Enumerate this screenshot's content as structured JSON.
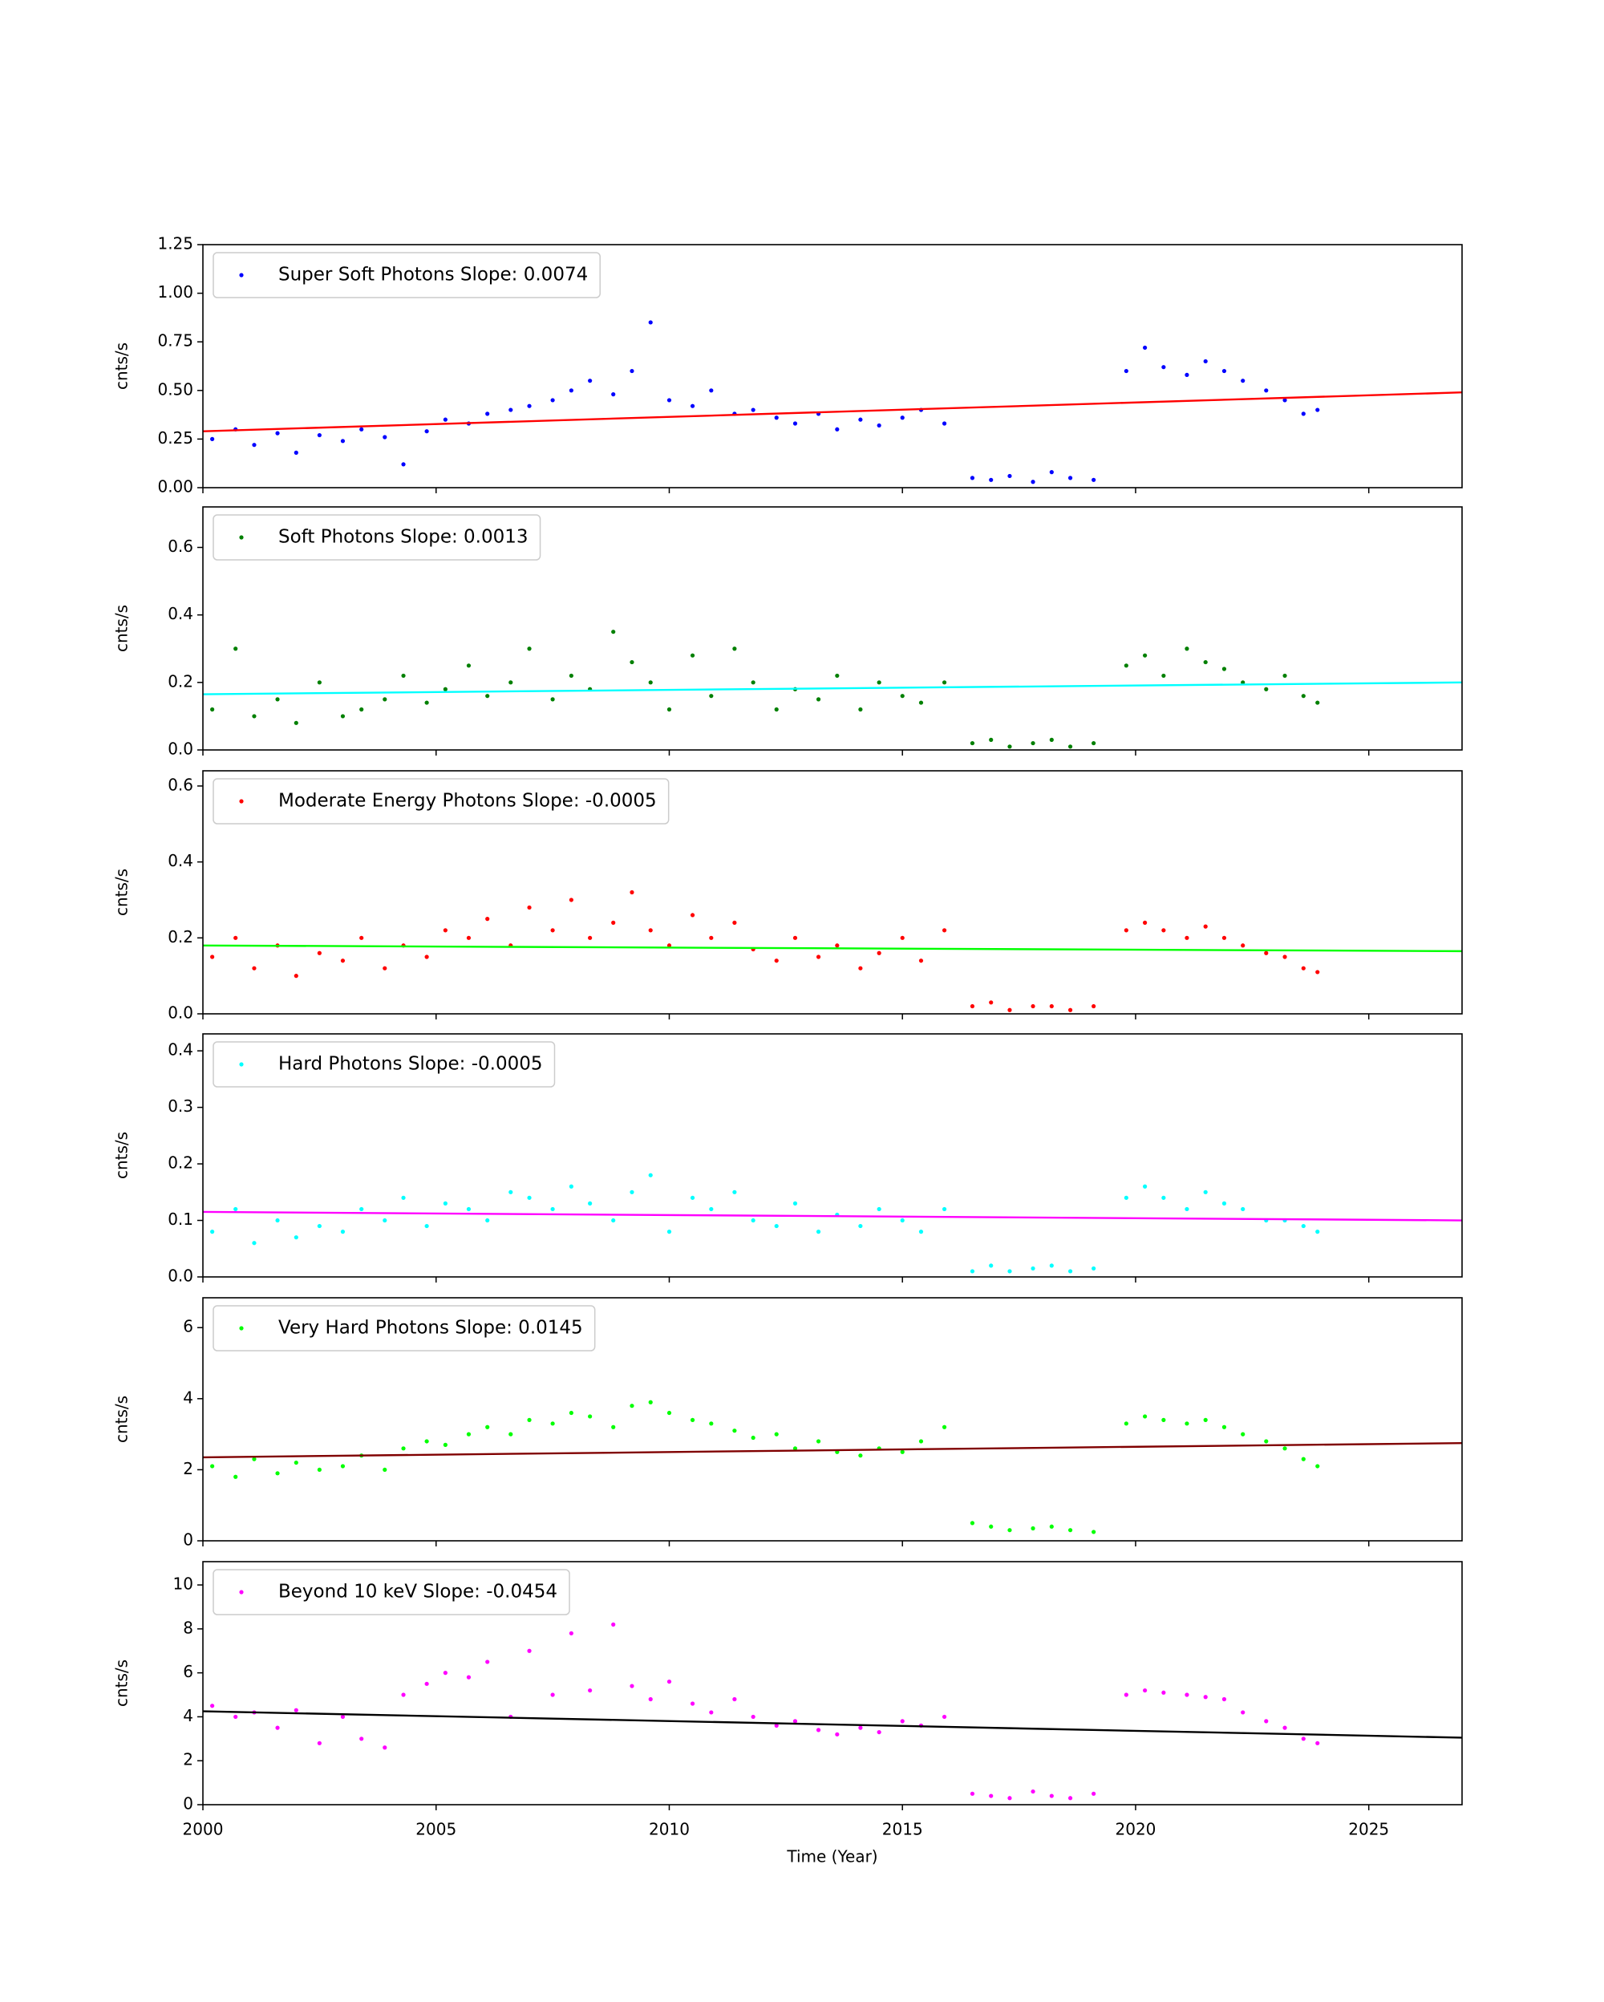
{
  "chart_data": [
    {
      "type": "scatter",
      "ylabel": "cnts/s",
      "xlim": [
        2000,
        2027
      ],
      "xticks": [
        2000,
        2005,
        2010,
        2015,
        2020,
        2025
      ],
      "ylim": [
        0,
        1.25
      ],
      "yticks": [
        {
          "value": 0,
          "label": "0.00"
        },
        {
          "value": 0.25,
          "label": "0.25"
        },
        {
          "value": 0.5,
          "label": "0.50"
        },
        {
          "value": 0.75,
          "label": "0.75"
        },
        {
          "value": 1,
          "label": "1.00"
        },
        {
          "value": 1.25,
          "label": "1.25"
        }
      ],
      "x": [
        2000.2,
        2000.7,
        2001.1,
        2001.6,
        2002.0,
        2002.5,
        2003.0,
        2003.4,
        2003.9,
        2004.3,
        2004.8,
        2005.2,
        2005.7,
        2006.1,
        2006.6,
        2007.0,
        2007.5,
        2007.9,
        2008.3,
        2008.8,
        2009.2,
        2009.6,
        2010.0,
        2010.5,
        2010.9,
        2011.4,
        2011.8,
        2012.3,
        2012.7,
        2013.2,
        2013.6,
        2014.1,
        2014.5,
        2015.0,
        2015.4,
        2015.9,
        2016.5,
        2016.9,
        2017.3,
        2017.8,
        2018.2,
        2018.6,
        2019.1,
        2019.8,
        2020.2,
        2020.6,
        2021.1,
        2021.5,
        2021.9,
        2022.3,
        2022.8,
        2023.2,
        2023.6,
        2023.9
      ],
      "series": [
        {
          "name": "Super Soft Photons Slope: 0.0074",
          "color": "#0000ff",
          "values": [
            0.25,
            0.3,
            0.22,
            0.28,
            0.18,
            0.27,
            0.24,
            0.3,
            0.26,
            0.12,
            0.29,
            0.35,
            0.33,
            0.38,
            0.4,
            0.42,
            0.45,
            0.5,
            0.55,
            0.48,
            0.6,
            0.85,
            0.45,
            0.42,
            0.5,
            0.38,
            0.4,
            0.36,
            0.33,
            0.38,
            0.3,
            0.35,
            0.32,
            0.36,
            0.4,
            0.33,
            0.05,
            0.04,
            0.06,
            0.03,
            0.08,
            0.05,
            0.04,
            0.6,
            0.72,
            0.62,
            0.58,
            0.65,
            0.6,
            0.55,
            0.5,
            0.45,
            0.38,
            0.4
          ]
        }
      ],
      "fit": {
        "x": [
          2000,
          2027
        ],
        "values": [
          0.29,
          0.49
        ],
        "color": "#ff0000"
      }
    },
    {
      "type": "scatter",
      "ylabel": "cnts/s",
      "xlim": [
        2000,
        2027
      ],
      "xticks": [
        2000,
        2005,
        2010,
        2015,
        2020,
        2025
      ],
      "ylim": [
        0,
        0.72
      ],
      "yticks": [
        {
          "value": 0,
          "label": "0.0"
        },
        0.2,
        0.4,
        0.6
      ],
      "x": [
        2000.2,
        2000.7,
        2001.1,
        2001.6,
        2002.0,
        2002.5,
        2003.0,
        2003.4,
        2003.9,
        2004.3,
        2004.8,
        2005.2,
        2005.7,
        2006.1,
        2006.6,
        2007.0,
        2007.5,
        2007.9,
        2008.3,
        2008.8,
        2009.2,
        2009.6,
        2010.0,
        2010.5,
        2010.9,
        2011.4,
        2011.8,
        2012.3,
        2012.7,
        2013.2,
        2013.6,
        2014.1,
        2014.5,
        2015.0,
        2015.4,
        2015.9,
        2016.5,
        2016.9,
        2017.3,
        2017.8,
        2018.2,
        2018.6,
        2019.1,
        2019.8,
        2020.2,
        2020.6,
        2021.1,
        2021.5,
        2021.9,
        2022.3,
        2022.8,
        2023.2,
        2023.6,
        2023.9
      ],
      "series": [
        {
          "name": "Soft Photons Slope: 0.0013",
          "color": "#008000",
          "values": [
            0.12,
            0.3,
            0.1,
            0.15,
            0.08,
            0.2,
            0.1,
            0.12,
            0.15,
            0.22,
            0.14,
            0.18,
            0.25,
            0.16,
            0.2,
            0.3,
            0.15,
            0.22,
            0.18,
            0.35,
            0.26,
            0.2,
            0.12,
            0.28,
            0.16,
            0.3,
            0.2,
            0.12,
            0.18,
            0.15,
            0.22,
            0.12,
            0.2,
            0.16,
            0.14,
            0.2,
            0.02,
            0.03,
            0.01,
            0.02,
            0.03,
            0.01,
            0.02,
            0.25,
            0.28,
            0.22,
            0.3,
            0.26,
            0.24,
            0.2,
            0.18,
            0.22,
            0.16,
            0.14
          ]
        }
      ],
      "fit": {
        "x": [
          2000,
          2027
        ],
        "values": [
          0.165,
          0.2
        ],
        "color": "#00ffff"
      }
    },
    {
      "type": "scatter",
      "ylabel": "cnts/s",
      "xlim": [
        2000,
        2027
      ],
      "xticks": [
        2000,
        2005,
        2010,
        2015,
        2020,
        2025
      ],
      "ylim": [
        0,
        0.64
      ],
      "yticks": [
        {
          "value": 0,
          "label": "0.0"
        },
        0.2,
        0.4,
        0.6
      ],
      "x": [
        2000.2,
        2000.7,
        2001.1,
        2001.6,
        2002.0,
        2002.5,
        2003.0,
        2003.4,
        2003.9,
        2004.3,
        2004.8,
        2005.2,
        2005.7,
        2006.1,
        2006.6,
        2007.0,
        2007.5,
        2007.9,
        2008.3,
        2008.8,
        2009.2,
        2009.6,
        2010.0,
        2010.5,
        2010.9,
        2011.4,
        2011.8,
        2012.3,
        2012.7,
        2013.2,
        2013.6,
        2014.1,
        2014.5,
        2015.0,
        2015.4,
        2015.9,
        2016.5,
        2016.9,
        2017.3,
        2017.8,
        2018.2,
        2018.6,
        2019.1,
        2019.8,
        2020.2,
        2020.6,
        2021.1,
        2021.5,
        2021.9,
        2022.3,
        2022.8,
        2023.2,
        2023.6,
        2023.9
      ],
      "series": [
        {
          "name": "Moderate Energy Photons Slope: -0.0005",
          "color": "#ff0000",
          "values": [
            0.15,
            0.2,
            0.12,
            0.18,
            0.1,
            0.16,
            0.14,
            0.2,
            0.12,
            0.18,
            0.15,
            0.22,
            0.2,
            0.25,
            0.18,
            0.28,
            0.22,
            0.3,
            0.2,
            0.24,
            0.32,
            0.22,
            0.18,
            0.26,
            0.2,
            0.24,
            0.17,
            0.14,
            0.2,
            0.15,
            0.18,
            0.12,
            0.16,
            0.2,
            0.14,
            0.22,
            0.02,
            0.03,
            0.01,
            0.02,
            0.02,
            0.01,
            0.02,
            0.22,
            0.24,
            0.22,
            0.2,
            0.23,
            0.2,
            0.18,
            0.16,
            0.15,
            0.12,
            0.11
          ]
        }
      ],
      "fit": {
        "x": [
          2000,
          2027
        ],
        "values": [
          0.18,
          0.165
        ],
        "color": "#00ff00"
      }
    },
    {
      "type": "scatter",
      "ylabel": "cnts/s",
      "xlim": [
        2000,
        2027
      ],
      "xticks": [
        2000,
        2005,
        2010,
        2015,
        2020,
        2025
      ],
      "ylim": [
        0,
        0.43
      ],
      "yticks": [
        {
          "value": 0,
          "label": "0.0"
        },
        0.1,
        0.2,
        0.3,
        0.4
      ],
      "x": [
        2000.2,
        2000.7,
        2001.1,
        2001.6,
        2002.0,
        2002.5,
        2003.0,
        2003.4,
        2003.9,
        2004.3,
        2004.8,
        2005.2,
        2005.7,
        2006.1,
        2006.6,
        2007.0,
        2007.5,
        2007.9,
        2008.3,
        2008.8,
        2009.2,
        2009.6,
        2010.0,
        2010.5,
        2010.9,
        2011.4,
        2011.8,
        2012.3,
        2012.7,
        2013.2,
        2013.6,
        2014.1,
        2014.5,
        2015.0,
        2015.4,
        2015.9,
        2016.5,
        2016.9,
        2017.3,
        2017.8,
        2018.2,
        2018.6,
        2019.1,
        2019.8,
        2020.2,
        2020.6,
        2021.1,
        2021.5,
        2021.9,
        2022.3,
        2022.8,
        2023.2,
        2023.6,
        2023.9
      ],
      "series": [
        {
          "name": "Hard Photons Slope: -0.0005",
          "color": "#00ffff",
          "values": [
            0.08,
            0.12,
            0.06,
            0.1,
            0.07,
            0.09,
            0.08,
            0.12,
            0.1,
            0.14,
            0.09,
            0.13,
            0.12,
            0.1,
            0.15,
            0.14,
            0.12,
            0.16,
            0.13,
            0.1,
            0.15,
            0.18,
            0.08,
            0.14,
            0.12,
            0.15,
            0.1,
            0.09,
            0.13,
            0.08,
            0.11,
            0.09,
            0.12,
            0.1,
            0.08,
            0.12,
            0.01,
            0.02,
            0.01,
            0.015,
            0.02,
            0.01,
            0.015,
            0.14,
            0.16,
            0.14,
            0.12,
            0.15,
            0.13,
            0.12,
            0.1,
            0.1,
            0.09,
            0.08
          ]
        }
      ],
      "fit": {
        "x": [
          2000,
          2027
        ],
        "values": [
          0.115,
          0.1
        ],
        "color": "#ff00ff"
      }
    },
    {
      "type": "scatter",
      "ylabel": "cnts/s",
      "xlim": [
        2000,
        2027
      ],
      "xticks": [
        2000,
        2005,
        2010,
        2015,
        2020,
        2025
      ],
      "ylim": [
        0,
        6.84
      ],
      "yticks": [
        0,
        2,
        4,
        6
      ],
      "x": [
        2000.2,
        2000.7,
        2001.1,
        2001.6,
        2002.0,
        2002.5,
        2003.0,
        2003.4,
        2003.9,
        2004.3,
        2004.8,
        2005.2,
        2005.7,
        2006.1,
        2006.6,
        2007.0,
        2007.5,
        2007.9,
        2008.3,
        2008.8,
        2009.2,
        2009.6,
        2010.0,
        2010.5,
        2010.9,
        2011.4,
        2011.8,
        2012.3,
        2012.7,
        2013.2,
        2013.6,
        2014.1,
        2014.5,
        2015.0,
        2015.4,
        2015.9,
        2016.5,
        2016.9,
        2017.3,
        2017.8,
        2018.2,
        2018.6,
        2019.1,
        2019.8,
        2020.2,
        2020.6,
        2021.1,
        2021.5,
        2021.9,
        2022.3,
        2022.8,
        2023.2,
        2023.6,
        2023.9
      ],
      "series": [
        {
          "name": "Very Hard Photons Slope: 0.0145",
          "color": "#00ff00",
          "values": [
            2.1,
            1.8,
            2.3,
            1.9,
            2.2,
            2.0,
            2.1,
            2.4,
            2.0,
            2.6,
            2.8,
            2.7,
            3.0,
            3.2,
            3.0,
            3.4,
            3.3,
            3.6,
            3.5,
            3.2,
            3.8,
            3.9,
            3.6,
            3.4,
            3.3,
            3.1,
            2.9,
            3.0,
            2.6,
            2.8,
            2.5,
            2.4,
            2.6,
            2.5,
            2.8,
            3.2,
            0.5,
            0.4,
            0.3,
            0.35,
            0.4,
            0.3,
            0.25,
            3.3,
            3.5,
            3.4,
            3.3,
            3.4,
            3.2,
            3.0,
            2.8,
            2.6,
            2.3,
            2.1
          ]
        }
      ],
      "fit": {
        "x": [
          2000,
          2027
        ],
        "values": [
          2.35,
          2.75
        ],
        "color": "#800000"
      }
    },
    {
      "type": "scatter",
      "ylabel": "cnts/s",
      "xlabel": "Time (Year)",
      "xlim": [
        2000,
        2027
      ],
      "xticks": [
        2000,
        2005,
        2010,
        2015,
        2020,
        2025
      ],
      "ylim": [
        0,
        11.06
      ],
      "yticks": [
        0,
        2,
        4,
        6,
        8,
        10
      ],
      "x": [
        2000.2,
        2000.7,
        2001.1,
        2001.6,
        2002.0,
        2002.5,
        2003.0,
        2003.4,
        2003.9,
        2004.3,
        2004.8,
        2005.2,
        2005.7,
        2006.1,
        2006.6,
        2007.0,
        2007.5,
        2007.9,
        2008.3,
        2008.8,
        2009.2,
        2009.6,
        2010.0,
        2010.5,
        2010.9,
        2011.4,
        2011.8,
        2012.3,
        2012.7,
        2013.2,
        2013.6,
        2014.1,
        2014.5,
        2015.0,
        2015.4,
        2015.9,
        2016.5,
        2016.9,
        2017.3,
        2017.8,
        2018.2,
        2018.6,
        2019.1,
        2019.8,
        2020.2,
        2020.6,
        2021.1,
        2021.5,
        2021.9,
        2022.3,
        2022.8,
        2023.2,
        2023.6,
        2023.9
      ],
      "series": [
        {
          "name": "Beyond 10 keV Slope: -0.0454",
          "color": "#ff00ff",
          "values": [
            4.5,
            4.0,
            4.2,
            3.5,
            4.3,
            2.8,
            4.0,
            3.0,
            2.6,
            5.0,
            5.5,
            6.0,
            5.8,
            6.5,
            4.0,
            7.0,
            5.0,
            7.8,
            5.2,
            8.2,
            5.4,
            4.8,
            5.6,
            4.6,
            4.2,
            4.8,
            4.0,
            3.6,
            3.8,
            3.4,
            3.2,
            3.5,
            3.3,
            3.8,
            3.6,
            4.0,
            0.5,
            0.4,
            0.3,
            0.6,
            0.4,
            0.3,
            0.5,
            5.0,
            5.2,
            5.1,
            5.0,
            4.9,
            4.8,
            4.2,
            3.8,
            3.5,
            3.0,
            2.8
          ]
        }
      ],
      "fit": {
        "x": [
          2000,
          2027
        ],
        "values": [
          4.25,
          3.05
        ],
        "color": "#000000"
      }
    }
  ]
}
